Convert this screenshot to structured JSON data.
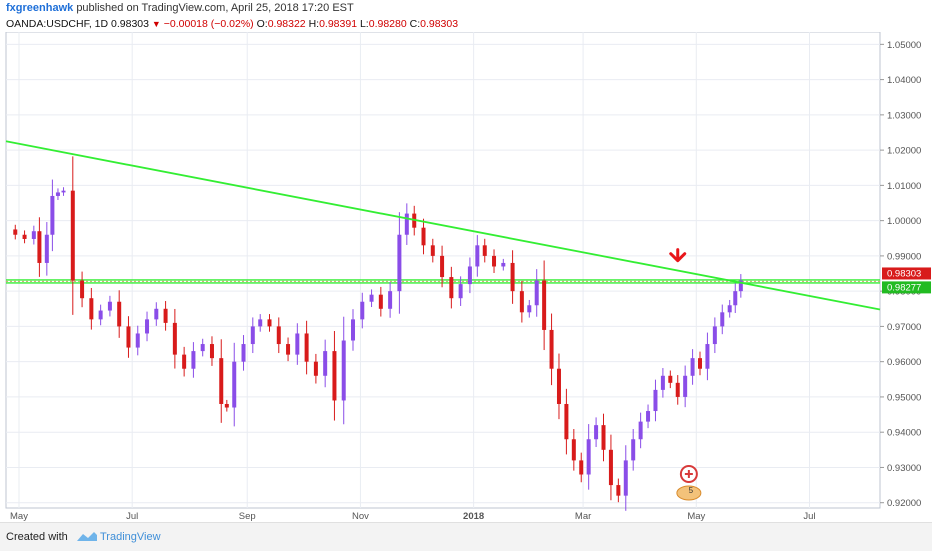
{
  "header": {
    "author": "fxgreenhawk",
    "published": "published on TradingView.com, April 25, 2018 17:20 EST",
    "symbol": "OANDA:USDCHF, 1D",
    "last": "0.98303",
    "change": "−0.00018 (−0.02%)",
    "o_label": "O:",
    "o_value": "0.98322",
    "h_label": "H:",
    "h_value": "0.98391",
    "l_label": "L:",
    "l_value": "0.98280",
    "c_label": "C:",
    "c_value": "0.98303"
  },
  "footer": {
    "created_with": "Created with",
    "brand": "TradingView"
  },
  "colors": {
    "bull": "#8a4de8",
    "bear": "#d81b1b",
    "trendline": "#33ee33",
    "price_tag": "#d81b1b",
    "level_tag": "#22bb22",
    "arrow": "#e8161b",
    "grid": "#e9ecf2"
  },
  "chart_data": {
    "type": "candlestick",
    "y_axis_ticks": [
      "1.05000",
      "1.04000",
      "1.03000",
      "1.02000",
      "1.01000",
      "1.00000",
      "0.99000",
      "0.98000",
      "0.97000",
      "0.96000",
      "0.95000",
      "0.94000",
      "0.93000",
      "0.92000"
    ],
    "ylim": [
      0.9185,
      1.0535
    ],
    "x_axis_ticks": [
      {
        "label": "May",
        "date": "2017-05-01"
      },
      {
        "label": "Jul",
        "date": "2017-07-01"
      },
      {
        "label": "Sep",
        "date": "2017-09-01"
      },
      {
        "label": "Nov",
        "date": "2017-11-01"
      },
      {
        "label": "2018",
        "date": "2018-01-01"
      },
      {
        "label": "Mar",
        "date": "2018-03-01"
      },
      {
        "label": "May",
        "date": "2018-05-01"
      },
      {
        "label": "Jul",
        "date": "2018-07-01"
      }
    ],
    "xlim": [
      "2017-04-24",
      "2018-08-08"
    ],
    "grid": true,
    "price_labels": [
      {
        "text": "0.98303",
        "value": 0.98303,
        "kind": "last"
      },
      {
        "text": "0.98277",
        "value": 0.98277,
        "kind": "level"
      }
    ],
    "horizontal_level": 0.98277,
    "trendline": {
      "from": [
        "2017-04-24",
        1.0225
      ],
      "to": [
        "2018-08-08",
        0.9748
      ]
    },
    "annotation": {
      "type": "down-arrow",
      "date": "2018-04-21",
      "value": 0.9895
    },
    "event_markers": [
      {
        "date": "2018-04-27",
        "label": ""
      },
      {
        "date": "2018-04-27",
        "label": "5"
      }
    ],
    "series": [
      {
        "points": [
          [
            "2017-04-24",
            0.9975
          ],
          [
            "2017-04-29",
            0.996
          ],
          [
            "2017-05-04",
            0.9948
          ],
          [
            "2017-05-09",
            0.997
          ],
          [
            "2017-05-12",
            0.988
          ],
          [
            "2017-05-16",
            0.996
          ],
          [
            "2017-05-19",
            1.007
          ],
          [
            "2017-05-22",
            1.008
          ],
          [
            "2017-05-25",
            1.0085
          ],
          [
            "2017-05-30",
            0.983
          ],
          [
            "2017-06-04",
            0.978
          ],
          [
            "2017-06-09",
            0.972
          ],
          [
            "2017-06-14",
            0.9745
          ],
          [
            "2017-06-19",
            0.977
          ],
          [
            "2017-06-24",
            0.97
          ],
          [
            "2017-06-29",
            0.964
          ],
          [
            "2017-07-04",
            0.968
          ],
          [
            "2017-07-09",
            0.972
          ],
          [
            "2017-07-14",
            0.975
          ],
          [
            "2017-07-19",
            0.971
          ],
          [
            "2017-07-24",
            0.962
          ],
          [
            "2017-07-29",
            0.958
          ],
          [
            "2017-08-03",
            0.963
          ],
          [
            "2017-08-08",
            0.965
          ],
          [
            "2017-08-13",
            0.961
          ],
          [
            "2017-08-18",
            0.948
          ],
          [
            "2017-08-21",
            0.947
          ],
          [
            "2017-08-25",
            0.96
          ],
          [
            "2017-08-30",
            0.965
          ],
          [
            "2017-09-04",
            0.97
          ],
          [
            "2017-09-08",
            0.972
          ],
          [
            "2017-09-13",
            0.97
          ],
          [
            "2017-09-18",
            0.965
          ],
          [
            "2017-09-23",
            0.962
          ],
          [
            "2017-09-28",
            0.968
          ],
          [
            "2017-10-03",
            0.96
          ],
          [
            "2017-10-08",
            0.956
          ],
          [
            "2017-10-13",
            0.963
          ],
          [
            "2017-10-18",
            0.949
          ],
          [
            "2017-10-23",
            0.966
          ],
          [
            "2017-10-28",
            0.972
          ],
          [
            "2017-11-02",
            0.977
          ],
          [
            "2017-11-07",
            0.979
          ],
          [
            "2017-11-12",
            0.975
          ],
          [
            "2017-11-17",
            0.98
          ],
          [
            "2017-11-22",
            0.996
          ],
          [
            "2017-11-26",
            1.002
          ],
          [
            "2017-11-30",
            0.998
          ],
          [
            "2017-12-05",
            0.993
          ],
          [
            "2017-12-10",
            0.99
          ],
          [
            "2017-12-15",
            0.984
          ],
          [
            "2017-12-20",
            0.978
          ],
          [
            "2017-12-25",
            0.982
          ],
          [
            "2017-12-30",
            0.987
          ],
          [
            "2018-01-03",
            0.993
          ],
          [
            "2018-01-07",
            0.99
          ],
          [
            "2018-01-12",
            0.987
          ],
          [
            "2018-01-17",
            0.988
          ],
          [
            "2018-01-22",
            0.98
          ],
          [
            "2018-01-27",
            0.974
          ],
          [
            "2018-01-31",
            0.976
          ],
          [
            "2018-02-04",
            0.983
          ],
          [
            "2018-02-08",
            0.969
          ],
          [
            "2018-02-12",
            0.958
          ],
          [
            "2018-02-16",
            0.948
          ],
          [
            "2018-02-20",
            0.938
          ],
          [
            "2018-02-24",
            0.932
          ],
          [
            "2018-02-28",
            0.928
          ],
          [
            "2018-03-04",
            0.938
          ],
          [
            "2018-03-08",
            0.942
          ],
          [
            "2018-03-12",
            0.935
          ],
          [
            "2018-03-16",
            0.925
          ],
          [
            "2018-03-20",
            0.922
          ],
          [
            "2018-03-24",
            0.932
          ],
          [
            "2018-03-28",
            0.938
          ],
          [
            "2018-04-01",
            0.943
          ],
          [
            "2018-04-05",
            0.946
          ],
          [
            "2018-04-09",
            0.952
          ],
          [
            "2018-04-13",
            0.956
          ],
          [
            "2018-04-17",
            0.954
          ],
          [
            "2018-04-21",
            0.95
          ],
          [
            "2018-04-25",
            0.956
          ],
          [
            "2018-04-29",
            0.961
          ],
          [
            "2018-05-03",
            0.958
          ],
          [
            "2018-05-07",
            0.965
          ],
          [
            "2018-05-11",
            0.97
          ],
          [
            "2018-05-15",
            0.974
          ],
          [
            "2018-05-19",
            0.976
          ],
          [
            "2018-05-22",
            0.98
          ],
          [
            "2018-05-25",
            0.983
          ]
        ]
      }
    ]
  }
}
